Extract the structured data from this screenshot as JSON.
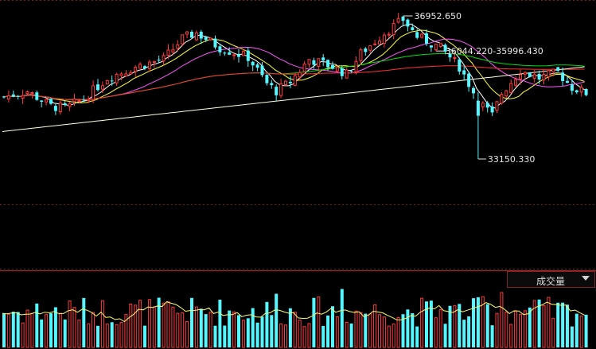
{
  "chart_data": {
    "type": "candlestick",
    "price_annotations": {
      "high_label": "36952.650",
      "range_label": "36044.220-35996.430",
      "low_label": "33150.330"
    },
    "colors": {
      "up": "#ff3b3b",
      "down": "#54f6ff",
      "ma5": "#ffffff",
      "ma10": "#ffff33",
      "ma20": "#ff55ff",
      "ma60": "#00e000",
      "ma120": "#ff3030",
      "ma250": "#ffffe0",
      "grid": "#7a1e1e",
      "volume_ma": "#ffff66"
    },
    "volume_panel": {
      "indicator": "成交量"
    }
  }
}
